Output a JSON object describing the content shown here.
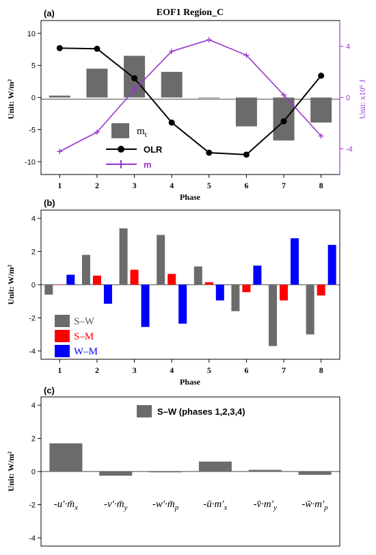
{
  "colors": {
    "gray": "#6b6b6b",
    "black": "#000000",
    "purple": "#9933cc",
    "red": "#ff0000",
    "blue": "#0000ff"
  },
  "panel_a": {
    "label": "(a)",
    "title": "EOF1 Region_C",
    "ylabel_left": "Unit:  W/m²",
    "ylabel_right": "Unit: x10⁶ J",
    "xlabel": "Phase",
    "legend": {
      "mt_label": "m",
      "mt_sub": "t",
      "olr_label": "OLR",
      "m_label": "m"
    }
  },
  "panel_b": {
    "label": "(b)",
    "ylabel": "Unit:  W/m²",
    "xlabel": "Phase",
    "legend": [
      "S–W",
      "S–M",
      "W–M"
    ]
  },
  "panel_c": {
    "label": "(c)",
    "ylabel": "Unit:  W/m²",
    "legend": "S–W (phases 1,2,3,4)",
    "terms": [
      {
        "sign": "-",
        "a": "u′",
        "dot": "·",
        "b": "m̄",
        "sub": "x"
      },
      {
        "sign": "-",
        "a": "v′",
        "dot": "·",
        "b": "m̄",
        "sub": "y"
      },
      {
        "sign": "-",
        "a": "w′",
        "dot": "·",
        "b": "m̄",
        "sub": "p"
      },
      {
        "sign": "-",
        "a": "ū",
        "dot": "·",
        "b": "m′",
        "sub": "x"
      },
      {
        "sign": "-",
        "a": "v̄",
        "dot": "·",
        "b": "m′",
        "sub": "y"
      },
      {
        "sign": "-",
        "a": "w̄",
        "dot": "·",
        "b": "m′",
        "sub": "p"
      }
    ]
  },
  "chart_data": [
    {
      "type": "bar",
      "panel": "a",
      "title": "EOF1 Region_C",
      "xlabel": "Phase",
      "ylabel": "Unit:  W/m²",
      "y2label": "Unit: x10⁶ J",
      "categories": [
        1,
        2,
        3,
        4,
        5,
        6,
        7,
        8
      ],
      "ylim": [
        -12,
        12
      ],
      "yticks": [
        -10,
        -5,
        0,
        5,
        10
      ],
      "y2lim": [
        -6,
        6
      ],
      "y2ticks": [
        -4,
        0,
        4
      ],
      "series": [
        {
          "name": "mt",
          "kind": "bar",
          "axis": "left",
          "values": [
            0.3,
            4.5,
            6.5,
            4.0,
            -0.1,
            -4.5,
            -6.7,
            -3.9
          ]
        },
        {
          "name": "OLR",
          "kind": "line-circle",
          "axis": "left",
          "values": [
            7.7,
            7.6,
            3.0,
            -3.9,
            -8.6,
            -8.9,
            -3.7,
            3.4
          ]
        },
        {
          "name": "m",
          "kind": "line-plus",
          "axis": "right",
          "values": [
            -4.2,
            -2.7,
            0.6,
            3.6,
            4.5,
            3.3,
            0.2,
            -3.0
          ]
        }
      ]
    },
    {
      "type": "bar",
      "panel": "b",
      "xlabel": "Phase",
      "ylabel": "Unit:  W/m²",
      "categories": [
        1,
        2,
        3,
        4,
        5,
        6,
        7,
        8
      ],
      "ylim": [
        -4.5,
        4.5
      ],
      "yticks": [
        -4,
        -2,
        0,
        2,
        4
      ],
      "series": [
        {
          "name": "S–W",
          "values": [
            -0.6,
            1.8,
            3.4,
            3.0,
            1.1,
            -1.6,
            -3.7,
            -3.0
          ]
        },
        {
          "name": "S–M",
          "values": [
            0.0,
            0.55,
            0.9,
            0.65,
            0.15,
            -0.45,
            -0.95,
            -0.65
          ]
        },
        {
          "name": "W–M",
          "values": [
            0.6,
            -1.15,
            -2.55,
            -2.35,
            -0.95,
            1.15,
            2.8,
            2.4
          ]
        }
      ]
    },
    {
      "type": "bar",
      "panel": "c",
      "ylabel": "Unit:  W/m²",
      "categories": [
        "-u′·m̄x",
        "-v′·m̄y",
        "-w′·m̄p",
        "-ū·m′x",
        "-v̄·m′y",
        "-w̄·m′p"
      ],
      "ylim": [
        -4.5,
        4.5
      ],
      "yticks": [
        -4,
        -2,
        0,
        2,
        4
      ],
      "series": [
        {
          "name": "S–W (phases 1,2,3,4)",
          "values": [
            1.7,
            -0.25,
            -0.05,
            0.6,
            0.1,
            -0.2
          ]
        }
      ]
    }
  ]
}
